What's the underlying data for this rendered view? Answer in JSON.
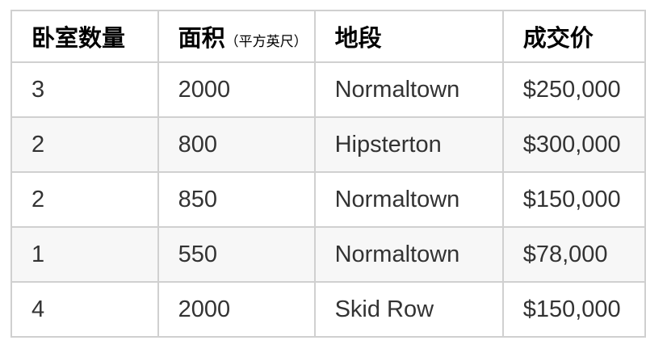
{
  "chart_data": {
    "type": "table",
    "title": "",
    "columns": [
      "卧室数量",
      "面积（平方英尺）",
      "地段",
      "成交价"
    ],
    "rows": [
      [
        "3",
        "2000",
        "Normaltown",
        "$250,000"
      ],
      [
        "2",
        "800",
        "Hipsterton",
        "$300,000"
      ],
      [
        "2",
        "850",
        "Normaltown",
        "$150,000"
      ],
      [
        "1",
        "550",
        "Normaltown",
        "$78,000"
      ],
      [
        "4",
        "2000",
        "Skid Row",
        "$150,000"
      ]
    ]
  },
  "table": {
    "columns": [
      {
        "label": "卧室数量",
        "note": ""
      },
      {
        "label": "面积",
        "note": "（平方英尺）"
      },
      {
        "label": "地段",
        "note": ""
      },
      {
        "label": "成交价",
        "note": ""
      }
    ],
    "rows": [
      [
        "3",
        "2000",
        "Normaltown",
        "$250,000"
      ],
      [
        "2",
        "800",
        "Hipsterton",
        "$300,000"
      ],
      [
        "2",
        "850",
        "Normaltown",
        "$150,000"
      ],
      [
        "1",
        "550",
        "Normaltown",
        "$78,000"
      ],
      [
        "4",
        "2000",
        "Skid Row",
        "$150,000"
      ]
    ]
  },
  "colors": {
    "border": "#d0d0d0",
    "stripe_row": "#f7f7f7",
    "header_text": "#000000",
    "body_text": "#333333",
    "background": "#ffffff"
  }
}
